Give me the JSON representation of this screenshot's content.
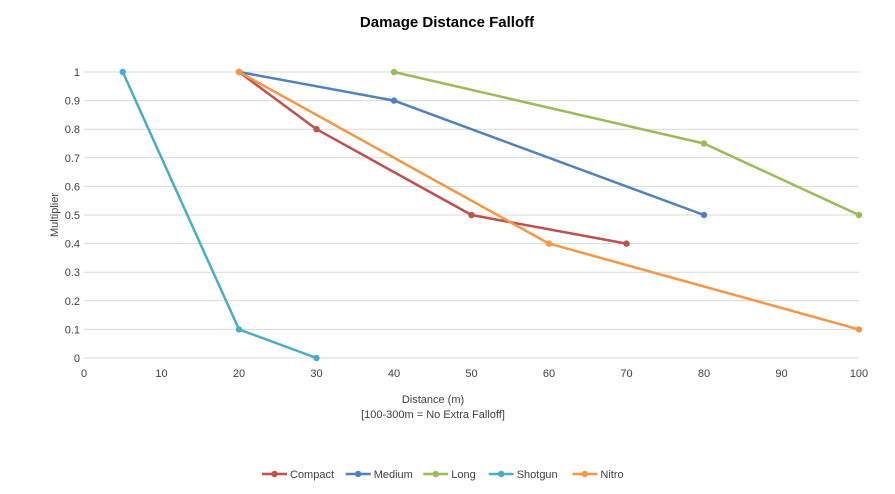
{
  "chart_data": {
    "type": "line",
    "title": "Damage Distance Falloff",
    "xlabel": "Distance (m)",
    "xlabel_note": "[100-300m = No Extra Falloff]",
    "ylabel": "Multiplier",
    "xlim": [
      0,
      100
    ],
    "ylim": [
      0,
      1
    ],
    "x_ticks": [
      "0",
      "10",
      "20",
      "30",
      "40",
      "50",
      "60",
      "70",
      "80",
      "90",
      "100"
    ],
    "y_ticks": [
      "0",
      "0.1",
      "0.2",
      "0.3",
      "0.4",
      "0.5",
      "0.6",
      "0.7",
      "0.8",
      "0.9",
      "1"
    ],
    "grid": "horizontal",
    "legend_position": "bottom",
    "series": [
      {
        "name": "Compact",
        "color": "#c0504d",
        "points": [
          [
            20,
            1
          ],
          [
            30,
            0.8
          ],
          [
            50,
            0.5
          ],
          [
            70,
            0.4
          ]
        ]
      },
      {
        "name": "Medium",
        "color": "#4f81bd",
        "points": [
          [
            20,
            1
          ],
          [
            40,
            0.9
          ],
          [
            80,
            0.5
          ]
        ]
      },
      {
        "name": "Long",
        "color": "#9bbb59",
        "points": [
          [
            40,
            1
          ],
          [
            80,
            0.75
          ],
          [
            100,
            0.5
          ]
        ]
      },
      {
        "name": "Shotgun",
        "color": "#4bacc6",
        "points": [
          [
            5,
            1
          ],
          [
            20,
            0.1
          ],
          [
            30,
            0
          ]
        ]
      },
      {
        "name": "Nitro",
        "color": "#f79646",
        "points": [
          [
            20,
            1
          ],
          [
            60,
            0.4
          ],
          [
            100,
            0.1
          ]
        ]
      }
    ]
  }
}
